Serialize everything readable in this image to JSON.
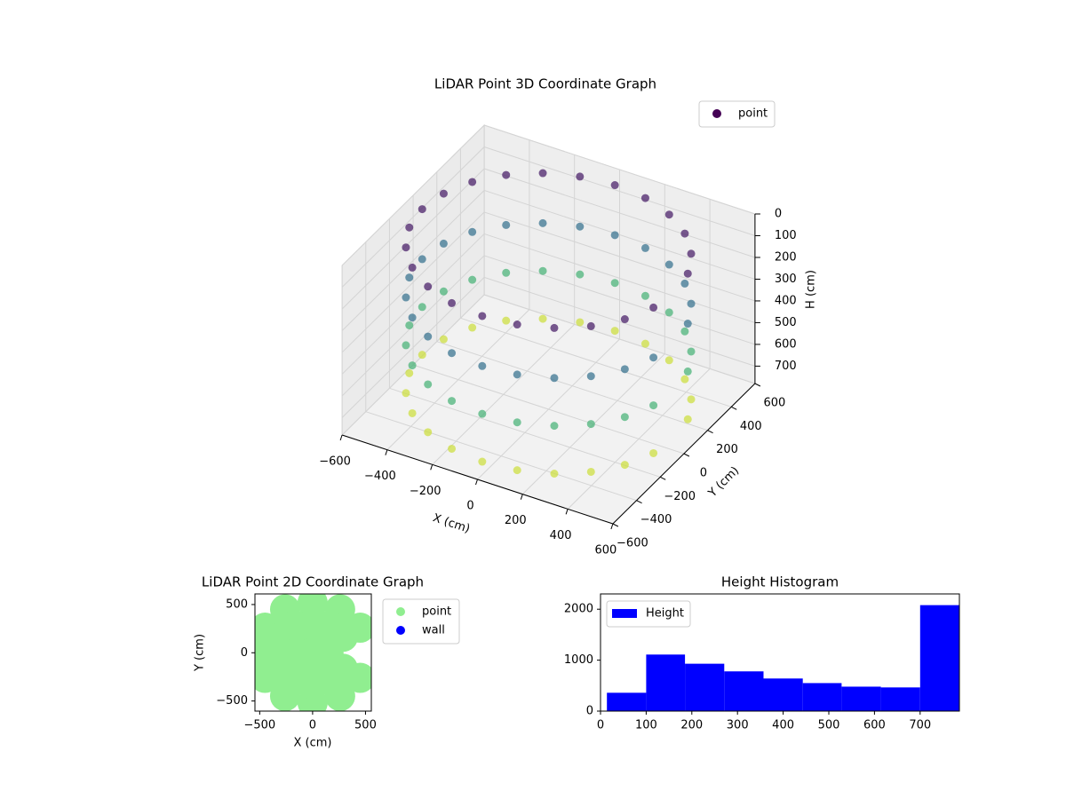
{
  "chart_data": [
    {
      "type": "scatter3d",
      "title": "LiDAR Point 3D Coordinate Graph",
      "xlabel": "X (cm)",
      "ylabel": "Y (cm)",
      "zlabel": "H (cm)",
      "xlim": [
        -600,
        600
      ],
      "ylim": [
        -600,
        600
      ],
      "zlim": [
        0,
        780
      ],
      "zinverted": true,
      "xticks": [
        {
          "value": -600,
          "label": "−600"
        },
        {
          "value": -400,
          "label": "−400"
        },
        {
          "value": -200,
          "label": "−200"
        },
        0,
        200,
        400,
        600
      ],
      "yticks": [
        {
          "value": -600,
          "label": "−600"
        },
        {
          "value": -400,
          "label": "−400"
        },
        {
          "value": -200,
          "label": "−200"
        },
        0,
        200,
        400,
        600
      ],
      "zticks": [
        0,
        100,
        200,
        300,
        400,
        500,
        600,
        700
      ],
      "colormap": "viridis",
      "grid": true,
      "legend": "upper right",
      "series": [
        {
          "name": "point",
          "color": "#440154",
          "x": [
            541,
            485,
            396,
            280,
            145,
            0,
            -145,
            -280,
            -396,
            -485,
            -541,
            -560,
            -541,
            -485,
            -396,
            -280,
            -145,
            0,
            145,
            280,
            396,
            485,
            541,
            541,
            485,
            396,
            280,
            145,
            0,
            -145,
            -280,
            -396,
            -485,
            -541,
            -560,
            -541,
            -485,
            -396,
            -280,
            -145,
            0,
            145,
            280,
            396,
            485,
            541,
            541,
            485,
            396,
            280,
            145,
            0,
            -145,
            -280,
            -396,
            -485,
            -541,
            -560,
            -541,
            -485,
            -396,
            -280,
            -145,
            0,
            145,
            280,
            396,
            485,
            541,
            541,
            485,
            396,
            280,
            145,
            0,
            -145,
            -280,
            -396,
            -485,
            -541,
            -560,
            -541,
            -485,
            -396,
            -280,
            -145,
            0,
            145,
            280,
            396,
            485,
            541
          ],
          "y": [
            145,
            280,
            396,
            485,
            541,
            560,
            541,
            485,
            396,
            280,
            145,
            0,
            -145,
            -280,
            -396,
            -485,
            -541,
            -560,
            -541,
            -485,
            -396,
            -280,
            -145,
            145,
            280,
            396,
            485,
            541,
            560,
            541,
            485,
            396,
            280,
            145,
            0,
            -145,
            -280,
            -396,
            -485,
            -541,
            -560,
            -541,
            -485,
            -396,
            -280,
            -145,
            145,
            280,
            396,
            485,
            541,
            560,
            541,
            485,
            396,
            280,
            145,
            0,
            -145,
            -280,
            -396,
            -485,
            -541,
            -560,
            -541,
            -485,
            -396,
            -280,
            -145,
            145,
            280,
            396,
            485,
            541,
            560,
            541,
            485,
            396,
            280,
            145,
            0,
            -145,
            -280,
            -396,
            -485,
            -541,
            -560,
            -541,
            -485,
            -396,
            -280,
            -145
          ],
          "z": [
            50,
            50,
            50,
            50,
            50,
            50,
            50,
            50,
            50,
            50,
            50,
            50,
            50,
            50,
            50,
            50,
            50,
            50,
            50,
            50,
            50,
            50,
            50,
            280,
            280,
            280,
            280,
            280,
            280,
            280,
            280,
            280,
            280,
            280,
            280,
            280,
            280,
            280,
            280,
            280,
            280,
            280,
            280,
            280,
            280,
            280,
            500,
            500,
            500,
            500,
            500,
            500,
            500,
            500,
            500,
            500,
            500,
            500,
            500,
            500,
            500,
            500,
            500,
            500,
            500,
            500,
            500,
            500,
            500,
            720,
            720,
            720,
            720,
            720,
            720,
            720,
            720,
            720,
            720,
            720,
            720,
            720,
            720,
            720,
            720,
            720,
            720,
            720,
            720,
            720,
            720,
            720
          ]
        }
      ]
    },
    {
      "type": "scatter",
      "title": "LiDAR Point 2D Coordinate Graph",
      "xlabel": "X (cm)",
      "ylabel": "Y (cm)",
      "xlim": [
        -545,
        555
      ],
      "ylim": [
        -605,
        610
      ],
      "xticks": [
        {
          "value": -500,
          "label": "−500"
        },
        0,
        500
      ],
      "yticks": [
        {
          "value": -500,
          "label": "−500"
        },
        0,
        500
      ],
      "legend": "outside right",
      "series": [
        {
          "name": "point",
          "color": "#90ee90",
          "x": [
            450,
            260,
            0,
            -260,
            -450,
            -520,
            -450,
            -260,
            0,
            260,
            450,
            286,
            165,
            0,
            -165,
            -286,
            -330,
            -286,
            -165,
            0,
            165,
            286,
            150,
            75,
            -75,
            -150,
            -75,
            75,
            0
          ],
          "y": [
            260,
            450,
            520,
            450,
            260,
            0,
            -260,
            -450,
            -520,
            -450,
            -260,
            165,
            286,
            330,
            286,
            165,
            0,
            -165,
            -286,
            -330,
            -286,
            -165,
            0,
            130,
            130,
            0,
            -130,
            -130,
            0
          ]
        },
        {
          "name": "wall",
          "color": "#0000ff",
          "x": [],
          "y": []
        }
      ]
    },
    {
      "type": "histogram",
      "title": "Height Histogram",
      "xlim": [
        0,
        786
      ],
      "ylim": [
        0,
        2300
      ],
      "xticks": [
        0,
        100,
        200,
        300,
        400,
        500,
        600,
        700
      ],
      "yticks": [
        0,
        1000,
        2000
      ],
      "legend": "upper left",
      "bins": [
        14,
        100,
        185,
        271,
        357,
        443,
        528,
        614,
        700,
        786
      ],
      "series": [
        {
          "name": "Height",
          "color": "#0000ff",
          "counts": [
            360,
            1110,
            930,
            780,
            640,
            550,
            480,
            465,
            2080
          ]
        }
      ]
    }
  ]
}
